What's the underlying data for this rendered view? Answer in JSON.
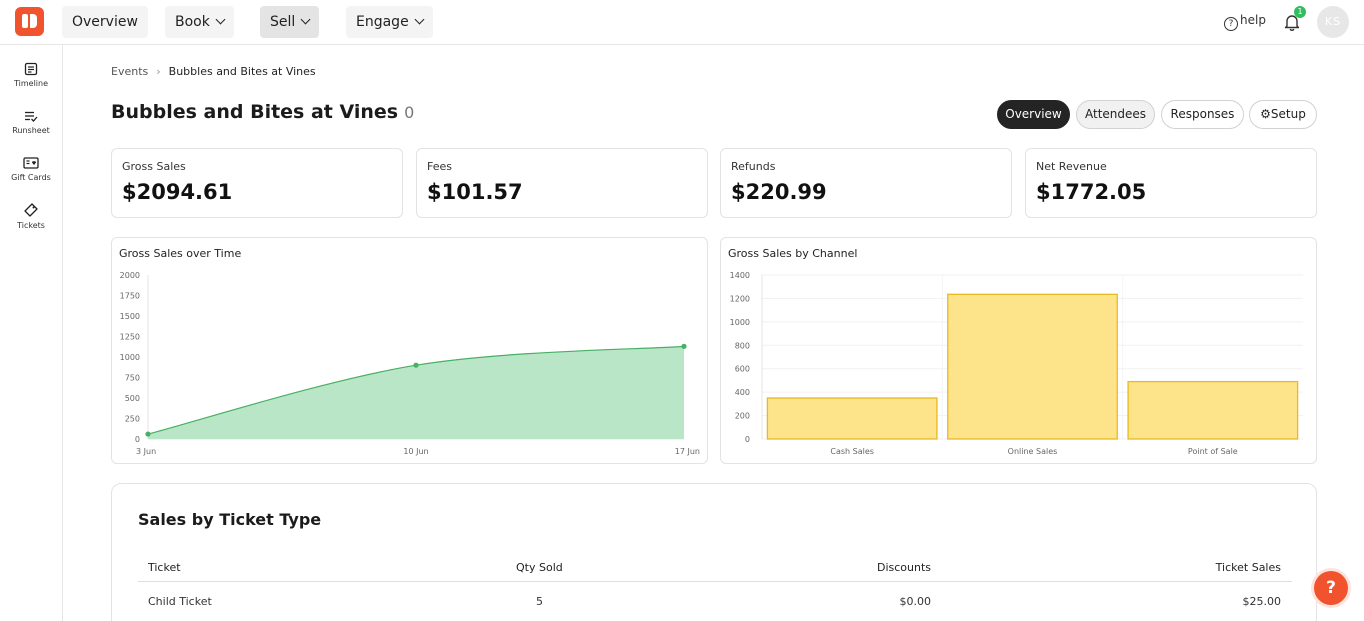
{
  "nav": {
    "overview": "Overview",
    "book": "Book",
    "sell": "Sell",
    "engage": "Engage",
    "help": "help",
    "notification_count": "1",
    "avatar_initials": "KS"
  },
  "sidebar": {
    "items": [
      {
        "label": "Timeline",
        "icon": "timeline-icon"
      },
      {
        "label": "Runsheet",
        "icon": "runsheet-icon"
      },
      {
        "label": "Gift Cards",
        "icon": "gift-card-icon"
      },
      {
        "label": "Tickets",
        "icon": "ticket-icon"
      }
    ]
  },
  "breadcrumb": {
    "root": "Events",
    "current": "Bubbles and Bites at Vines"
  },
  "page": {
    "title": "Bubbles and Bites at Vines",
    "count": "0"
  },
  "tabs": [
    "Overview",
    "Attendees",
    "Responses",
    "Setup"
  ],
  "stats": [
    {
      "label": "Gross Sales",
      "value": "$2094.61"
    },
    {
      "label": "Fees",
      "value": "$101.57"
    },
    {
      "label": "Refunds",
      "value": "$220.99"
    },
    {
      "label": "Net Revenue",
      "value": "$1772.05"
    }
  ],
  "colors": {
    "brand": "#f0532d",
    "area_fill": "#b9e6c7",
    "area_line": "#48b064",
    "bar_fill": "#fde48a",
    "bar_stroke": "#e8b923"
  },
  "chart_data": [
    {
      "type": "area",
      "title": "Gross Sales over Time",
      "x": [
        "3 Jun",
        "10 Jun",
        "17 Jun"
      ],
      "series": [
        {
          "values": [
            60,
            900,
            1130
          ]
        }
      ],
      "yticks": [
        0,
        250,
        500,
        750,
        1000,
        1250,
        1500,
        1750,
        2000
      ],
      "ylim": [
        0,
        2000
      ],
      "grid": false
    },
    {
      "type": "bar",
      "title": "Gross Sales by Channel",
      "categories": [
        "Cash Sales",
        "Online Sales",
        "Point of Sale"
      ],
      "values": [
        350,
        1235,
        490
      ],
      "yticks": [
        0,
        200,
        400,
        600,
        800,
        1000,
        1200,
        1400
      ],
      "ylim": [
        0,
        1400
      ],
      "grid": true
    }
  ],
  "table": {
    "title": "Sales by Ticket Type",
    "columns": [
      "Ticket",
      "Qty Sold",
      "Discounts",
      "Ticket Sales"
    ],
    "rows": [
      [
        "Child Ticket",
        "5",
        "$0.00",
        "$25.00"
      ]
    ]
  },
  "fab": "?"
}
